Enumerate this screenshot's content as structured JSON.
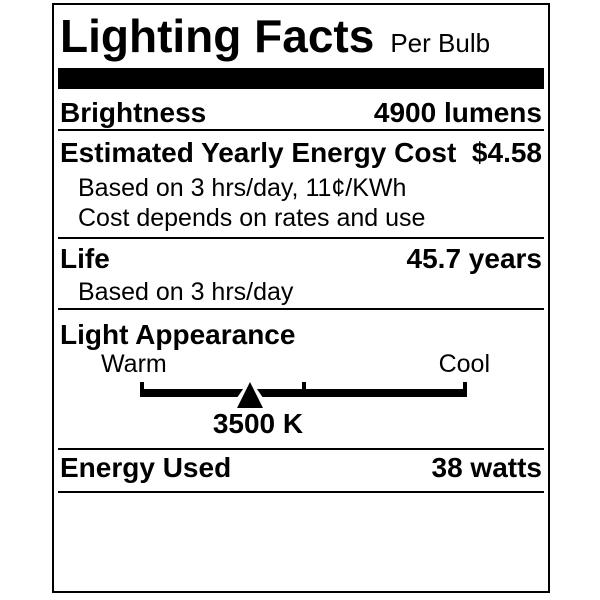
{
  "label": {
    "title": "Lighting Facts",
    "subtitle": "Per Bulb",
    "sections": {
      "brightness": {
        "label": "Brightness",
        "value": "4900 lumens"
      },
      "energy_cost": {
        "label": "Estimated Yearly Energy Cost",
        "value": "$4.58",
        "notes": [
          "Based on 3 hrs/day, 11¢/KWh",
          "Cost depends on rates and use"
        ]
      },
      "life": {
        "label": "Life",
        "value": "45.7 years",
        "notes": [
          "Based on 3 hrs/day"
        ]
      },
      "light_appearance": {
        "label": "Light Appearance",
        "warm_label": "Warm",
        "cool_label": "Cool",
        "kelvin": "3500 K",
        "marker_position_pct": 33.6
      },
      "energy_used": {
        "label": "Energy Used",
        "value": "38 watts"
      }
    },
    "colors": {
      "ink": "#000000",
      "background": "#ffffff"
    }
  }
}
